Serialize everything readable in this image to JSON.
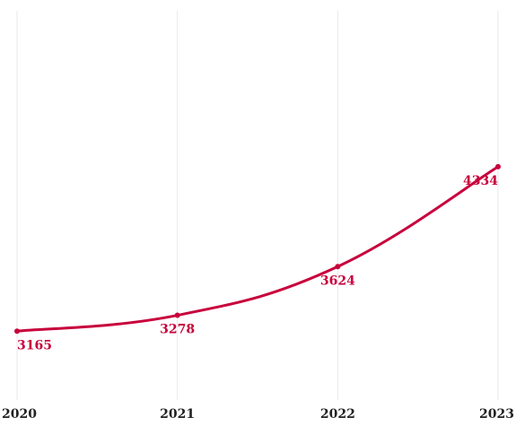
{
  "chart_data": {
    "type": "line",
    "title": "",
    "xlabel": "",
    "ylabel": "",
    "categories": [
      "2020",
      "2021",
      "2022",
      "2023"
    ],
    "series": [
      {
        "values": [
          3165,
          3278,
          3624,
          4334
        ],
        "color": "#c8003c"
      }
    ],
    "ylim": [
      2000,
      5500
    ],
    "grid": {
      "vertical": true,
      "horizontal": false
    },
    "grid_color": "#e9e9e9",
    "data_labels": true,
    "legend": "none"
  }
}
